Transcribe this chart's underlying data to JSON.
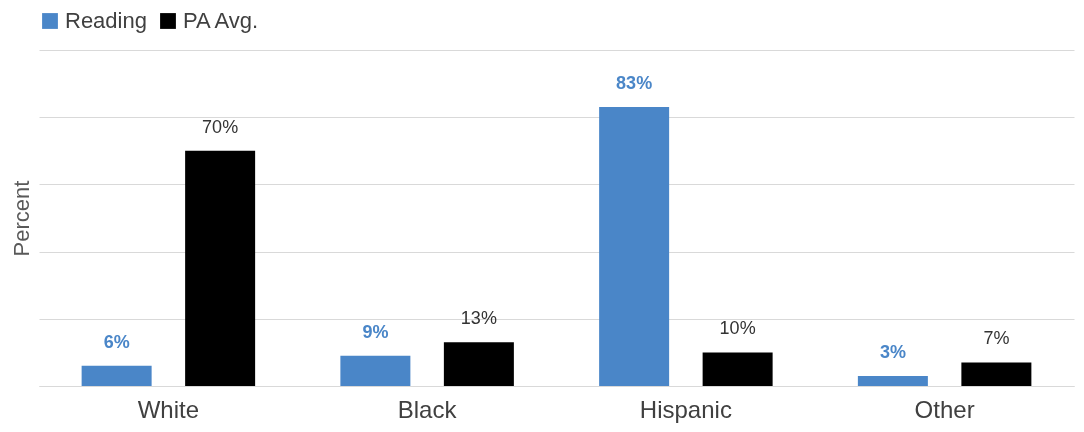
{
  "chart_data": {
    "type": "bar",
    "ylabel": "Percent",
    "categories": [
      "White",
      "Black",
      "Hispanic",
      "Other"
    ],
    "series": [
      {
        "name": "Reading",
        "color": "#4a86c8",
        "values": [
          6,
          9,
          83,
          3
        ],
        "value_labels": [
          "6%",
          "9%",
          "83%",
          "3%"
        ]
      },
      {
        "name": "PA Avg.",
        "color": "#000000",
        "values": [
          70,
          13,
          10,
          7
        ],
        "value_labels": [
          "70%",
          "13%",
          "10%",
          "7%"
        ]
      }
    ],
    "ylim": [
      0,
      100
    ],
    "yticks": [
      {
        "value": 0,
        "label": null
      },
      {
        "value": 20,
        "label": null
      },
      {
        "value": 40,
        "label": null
      },
      {
        "value": 60,
        "label": null
      },
      {
        "value": 80,
        "label": null
      },
      {
        "value": 100,
        "label": null
      }
    ],
    "grid": "y",
    "legend": "top"
  }
}
